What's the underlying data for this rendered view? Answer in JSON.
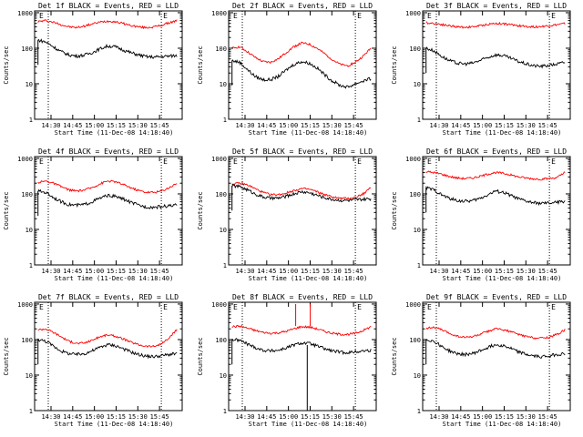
{
  "colors": {
    "events": "#000000",
    "lld": "#ff0000"
  },
  "chart_data": [
    {
      "type": "line",
      "title": "Det 1f BLACK = Events, RED = LLD",
      "ylabel": "Counts/sec",
      "xlabel": "Start Time (11-Dec-08 14:18:40)",
      "xticks": [
        "14:30",
        "14:45",
        "15:00",
        "15:15",
        "15:30",
        "15:45"
      ],
      "yscale": "log",
      "yticks": [
        "1",
        "10",
        "100",
        "1000"
      ],
      "ylim": [
        1,
        1000
      ],
      "marker_labels": [
        "E",
        "E"
      ],
      "markers_x": [
        "14:30",
        "15:45"
      ],
      "series": [
        {
          "color": "red",
          "values": [
            560,
            600,
            540,
            460,
            400,
            380,
            420,
            480,
            540,
            580,
            560,
            500,
            440,
            400,
            380,
            400,
            440,
            520,
            600
          ]
        },
        {
          "color": "black",
          "values": [
            170,
            150,
            110,
            80,
            65,
            60,
            64,
            75,
            95,
            115,
            110,
            90,
            75,
            65,
            58,
            56,
            58,
            60,
            62
          ]
        }
      ]
    },
    {
      "type": "line",
      "title": "Det 2f BLACK = Events, RED = LLD",
      "ylabel": "Counts/sec",
      "xlabel": "Start Time (11-Dec-08 14:18:40)",
      "xticks": [
        "14:30",
        "14:45",
        "15:00",
        "15:15",
        "15:30",
        "15:45"
      ],
      "yscale": "log",
      "yticks": [
        "1",
        "10",
        "100",
        "1000"
      ],
      "ylim": [
        1,
        1000
      ],
      "marker_labels": [
        "E",
        "E"
      ],
      "markers_x": [
        "14:30",
        "15:45"
      ],
      "series": [
        {
          "color": "red",
          "values": [
            100,
            110,
            80,
            55,
            42,
            40,
            50,
            75,
            110,
            140,
            130,
            100,
            70,
            48,
            35,
            32,
            40,
            60,
            100
          ]
        },
        {
          "color": "black",
          "values": [
            45,
            40,
            25,
            16,
            13,
            13,
            16,
            24,
            35,
            42,
            38,
            28,
            18,
            12,
            9,
            8,
            10,
            12,
            14
          ]
        }
      ]
    },
    {
      "type": "line",
      "title": "Det 3f BLACK = Events, RED = LLD",
      "ylabel": "Counts/sec",
      "xlabel": "Start Time (11-Dec-08 14:18:40)",
      "xticks": [
        "14:30",
        "14:45",
        "15:00",
        "15:15",
        "15:30",
        "15:45"
      ],
      "yscale": "log",
      "yticks": [
        "1",
        "10",
        "100",
        "1000"
      ],
      "ylim": [
        1,
        1000
      ],
      "marker_labels": [
        "E",
        "E"
      ],
      "markers_x": [
        "14:30",
        "15:45"
      ],
      "series": [
        {
          "color": "red",
          "values": [
            520,
            500,
            470,
            430,
            400,
            390,
            400,
            430,
            470,
            500,
            490,
            460,
            430,
            410,
            400,
            410,
            430,
            460,
            490
          ]
        },
        {
          "color": "black",
          "values": [
            100,
            85,
            60,
            45,
            38,
            36,
            38,
            45,
            55,
            65,
            62,
            52,
            42,
            36,
            32,
            31,
            33,
            36,
            40
          ]
        }
      ]
    },
    {
      "type": "line",
      "title": "Det 4f BLACK = Events, RED = LLD",
      "ylabel": "Counts/sec",
      "xlabel": "Start Time (11-Dec-08 14:18:40)",
      "xticks": [
        "14:30",
        "14:45",
        "15:00",
        "15:15",
        "15:30",
        "15:45"
      ],
      "yscale": "log",
      "yticks": [
        "1",
        "10",
        "100",
        "1000"
      ],
      "ylim": [
        1,
        1000
      ],
      "marker_labels": [
        "E",
        "E"
      ],
      "markers_x": [
        "14:30",
        "15:45"
      ],
      "series": [
        {
          "color": "red",
          "values": [
            210,
            230,
            200,
            160,
            130,
            120,
            128,
            150,
            190,
            230,
            220,
            185,
            150,
            125,
            112,
            110,
            120,
            150,
            200
          ]
        },
        {
          "color": "black",
          "values": [
            120,
            110,
            80,
            60,
            50,
            48,
            50,
            60,
            75,
            90,
            85,
            72,
            58,
            48,
            43,
            42,
            44,
            46,
            48
          ]
        }
      ]
    },
    {
      "type": "line",
      "title": "Det 5f BLACK = Events, RED = LLD",
      "ylabel": "Counts/sec",
      "xlabel": "Start Time (11-Dec-08 14:18:40)",
      "xticks": [
        "14:30",
        "14:45",
        "15:00",
        "15:15",
        "15:30",
        "15:45"
      ],
      "yscale": "log",
      "yticks": [
        "1",
        "10",
        "100",
        "1000"
      ],
      "ylim": [
        1,
        1000
      ],
      "marker_labels": [
        "E",
        "E"
      ],
      "markers_x": [
        "14:30",
        "15:45"
      ],
      "series": [
        {
          "color": "red",
          "values": [
            190,
            200,
            180,
            140,
            110,
            95,
            95,
            105,
            125,
            140,
            135,
            115,
            95,
            82,
            75,
            74,
            80,
            100,
            150
          ]
        },
        {
          "color": "black",
          "values": [
            170,
            160,
            130,
            100,
            82,
            75,
            76,
            85,
            100,
            115,
            108,
            92,
            78,
            70,
            66,
            65,
            67,
            70,
            72
          ]
        }
      ]
    },
    {
      "type": "line",
      "title": "Det 6f BLACK = Events, RED = LLD",
      "ylabel": "Counts/sec",
      "xlabel": "Start Time (11-Dec-08 14:18:40)",
      "xticks": [
        "14:30",
        "14:45",
        "15:00",
        "15:15",
        "15:30",
        "15:45"
      ],
      "yscale": "log",
      "yticks": [
        "1",
        "10",
        "100",
        "1000"
      ],
      "ylim": [
        1,
        1000
      ],
      "marker_labels": [
        "E",
        "E"
      ],
      "markers_x": [
        "14:30",
        "15:45"
      ],
      "series": [
        {
          "color": "red",
          "values": [
            420,
            400,
            360,
            310,
            280,
            270,
            280,
            310,
            360,
            400,
            380,
            340,
            300,
            280,
            265,
            260,
            270,
            290,
            400
          ]
        },
        {
          "color": "black",
          "values": [
            150,
            130,
            95,
            75,
            65,
            62,
            64,
            75,
            95,
            120,
            110,
            90,
            72,
            62,
            56,
            54,
            55,
            58,
            62
          ]
        }
      ]
    },
    {
      "type": "line",
      "title": "Det 7f BLACK = Events, RED = LLD",
      "ylabel": "Counts/sec",
      "xlabel": "Start Time (11-Dec-08 14:18:40)",
      "xticks": [
        "14:30",
        "14:45",
        "15:00",
        "15:15",
        "15:30",
        "15:45"
      ],
      "yscale": "log",
      "yticks": [
        "1",
        "10",
        "100",
        "1000"
      ],
      "ylim": [
        1,
        1000
      ],
      "marker_labels": [
        "E",
        "E"
      ],
      "markers_x": [
        "14:30",
        "15:45"
      ],
      "series": [
        {
          "color": "red",
          "values": [
            190,
            200,
            160,
            120,
            90,
            78,
            80,
            95,
            120,
            135,
            125,
            105,
            85,
            72,
            65,
            64,
            75,
            110,
            190
          ]
        },
        {
          "color": "black",
          "values": [
            100,
            90,
            65,
            48,
            40,
            38,
            40,
            48,
            60,
            72,
            68,
            56,
            45,
            38,
            34,
            33,
            35,
            38,
            40
          ]
        }
      ]
    },
    {
      "type": "line",
      "title": "Det 8f BLACK = Events, RED = LLD",
      "ylabel": "Counts/sec",
      "xlabel": "Start Time (11-Dec-08 14:18:40)",
      "xticks": [
        "14:30",
        "14:45",
        "15:00",
        "15:15",
        "15:30",
        "15:45"
      ],
      "yscale": "log",
      "yticks": [
        "1",
        "10",
        "100",
        "1000"
      ],
      "ylim": [
        1,
        1000
      ],
      "marker_labels": [
        "E",
        "E"
      ],
      "markers_x": [
        "14:30",
        "15:45"
      ],
      "series": [
        {
          "color": "red",
          "values": [
            230,
            240,
            210,
            180,
            160,
            150,
            155,
            170,
            200,
            230,
            225,
            200,
            170,
            150,
            140,
            140,
            150,
            180,
            230
          ]
        },
        {
          "color": "black",
          "values": [
            100,
            95,
            75,
            60,
            50,
            48,
            50,
            58,
            70,
            80,
            78,
            66,
            55,
            48,
            44,
            43,
            45,
            48,
            50
          ]
        }
      ],
      "spikes": [
        {
          "x": "15:05",
          "series": "red",
          "to": 1000
        },
        {
          "x": "15:13",
          "series": "black",
          "to": 1
        }
      ]
    },
    {
      "type": "line",
      "title": "Det 9f BLACK = Events, RED = LLD",
      "ylabel": "Counts/sec",
      "xlabel": "Start Time (11-Dec-08 14:18:40)",
      "xticks": [
        "14:30",
        "14:45",
        "15:00",
        "15:15",
        "15:30",
        "15:45"
      ],
      "yscale": "log",
      "yticks": [
        "1",
        "10",
        "100",
        "1000"
      ],
      "ylim": [
        1,
        1000
      ],
      "marker_labels": [
        "E",
        "E"
      ],
      "markers_x": [
        "14:30",
        "15:45"
      ],
      "series": [
        {
          "color": "red",
          "values": [
            210,
            220,
            190,
            150,
            125,
            115,
            120,
            140,
            170,
            200,
            190,
            165,
            140,
            122,
            112,
            110,
            118,
            140,
            190
          ]
        },
        {
          "color": "black",
          "values": [
            100,
            90,
            65,
            48,
            40,
            38,
            40,
            48,
            60,
            72,
            68,
            56,
            45,
            38,
            34,
            33,
            35,
            38,
            40
          ]
        }
      ]
    }
  ]
}
